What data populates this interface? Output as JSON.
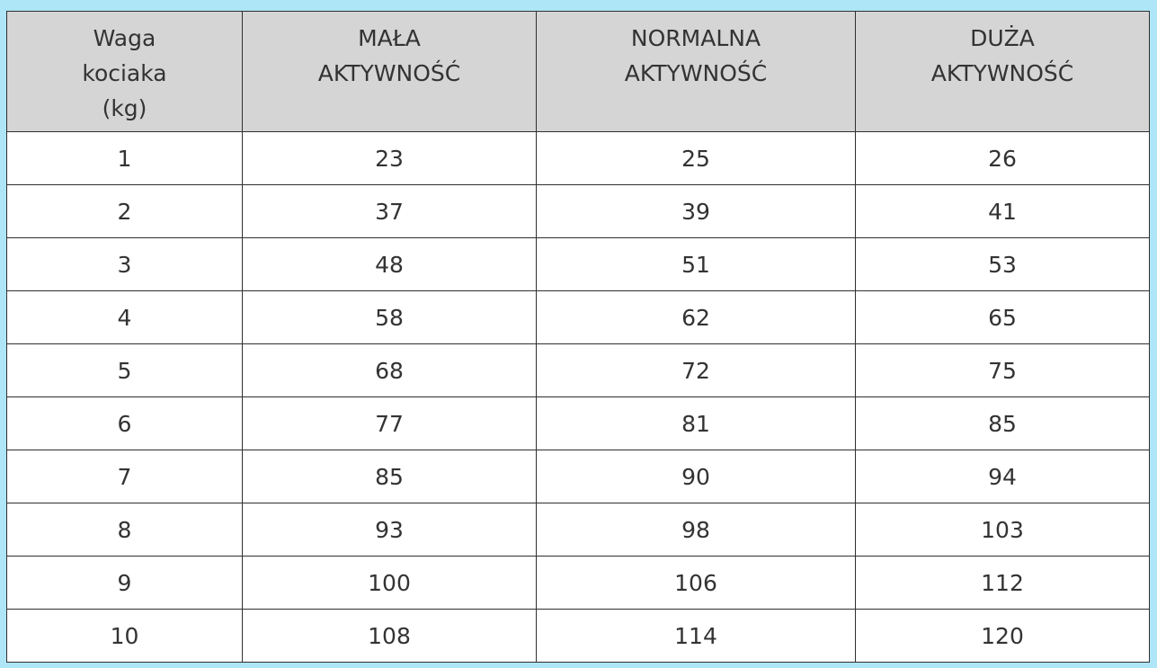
{
  "table": {
    "headers": [
      [
        "Waga",
        "kociaka",
        "(kg)"
      ],
      [
        "MAŁA",
        "AKTYWNOŚĆ"
      ],
      [
        "NORMALNA",
        "AKTYWNOŚĆ"
      ],
      [
        "DUŻA",
        "AKTYWNOŚĆ"
      ]
    ],
    "rows": [
      [
        "1",
        "23",
        "25",
        "26"
      ],
      [
        "2",
        "37",
        "39",
        "41"
      ],
      [
        "3",
        "48",
        "51",
        "53"
      ],
      [
        "4",
        "58",
        "62",
        "65"
      ],
      [
        "5",
        "68",
        "72",
        "75"
      ],
      [
        "6",
        "77",
        "81",
        "85"
      ],
      [
        "7",
        "85",
        "90",
        "94"
      ],
      [
        "8",
        "93",
        "98",
        "103"
      ],
      [
        "9",
        "100",
        "106",
        "112"
      ],
      [
        "10",
        "108",
        "114",
        "120"
      ]
    ]
  },
  "colors": {
    "background": "#aee6f8",
    "header_bg": "#d5d5d5",
    "border": "#2f2f2f",
    "text": "#333333"
  }
}
